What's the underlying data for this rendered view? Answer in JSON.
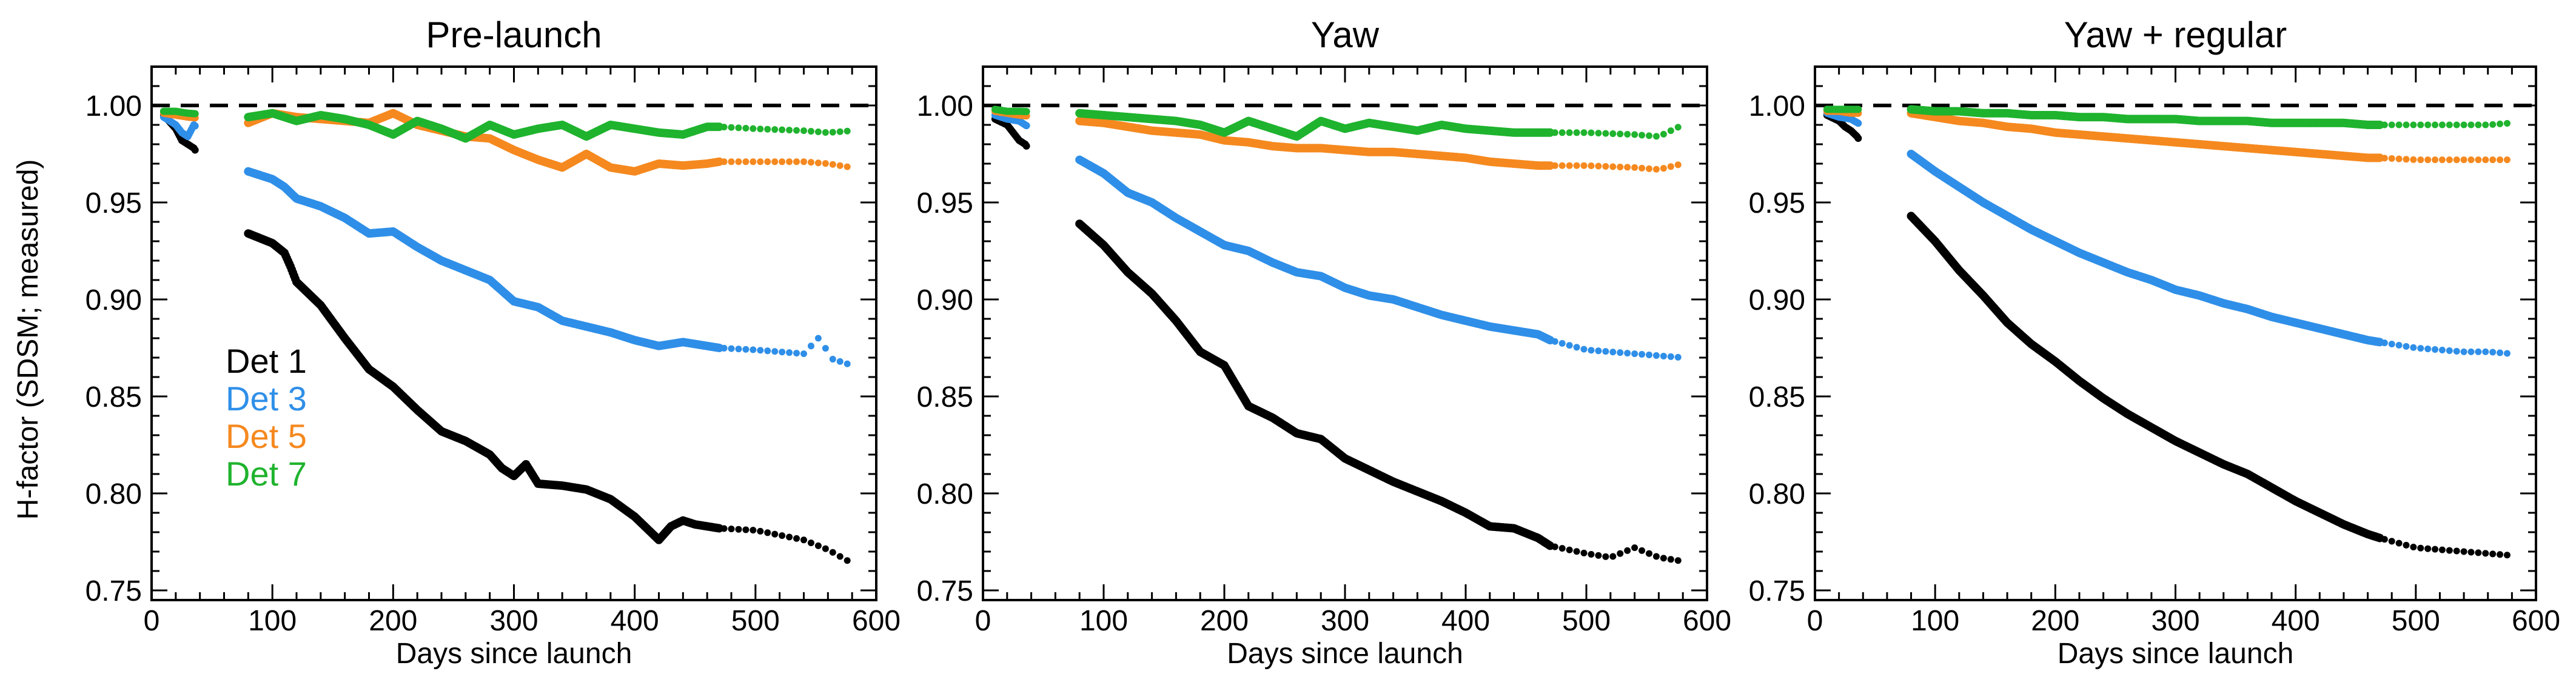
{
  "figure": {
    "ylabel": "H-factor (SDSM; measured)"
  },
  "chart_data": [
    {
      "type": "scatter",
      "title": "Pre-launch",
      "xlabel": "Days since launch",
      "ylabel": "H-factor (SDSM; measured)",
      "xlim": [
        0,
        600
      ],
      "ylim": [
        0.745,
        1.02
      ],
      "xticks": [
        0,
        100,
        200,
        300,
        400,
        500,
        600
      ],
      "yticks": [
        0.75,
        0.8,
        0.85,
        0.9,
        0.95,
        1.0
      ],
      "reference_line": 1.0,
      "legend": {
        "placement": "left-middle",
        "entries": [
          "Det 1",
          "Det 3",
          "Det 5",
          "Det 7"
        ]
      },
      "series": [
        {
          "name": "Det 1",
          "color": "#000000",
          "x": [
            10,
            20,
            25,
            30,
            35,
            80,
            100,
            110,
            115,
            120,
            140,
            160,
            180,
            200,
            220,
            240,
            260,
            280,
            290,
            300,
            310,
            320,
            340,
            360,
            380,
            400,
            410,
            420,
            430,
            440,
            450,
            460,
            470,
            500,
            540,
            560,
            580
          ],
          "y": [
            0.995,
            0.988,
            0.982,
            0.98,
            0.978,
            0.934,
            0.929,
            0.924,
            0.917,
            0.909,
            0.897,
            0.88,
            0.864,
            0.855,
            0.843,
            0.832,
            0.827,
            0.82,
            0.813,
            0.809,
            0.815,
            0.805,
            0.804,
            0.802,
            0.797,
            0.788,
            0.782,
            0.776,
            0.783,
            0.786,
            0.784,
            0.783,
            0.782,
            0.781,
            0.776,
            0.771,
            0.764
          ]
        },
        {
          "name": "Det 3",
          "color": "#2f8fe8",
          "x": [
            10,
            20,
            25,
            30,
            35,
            80,
            100,
            110,
            115,
            120,
            140,
            160,
            180,
            200,
            220,
            240,
            260,
            280,
            300,
            320,
            340,
            360,
            380,
            400,
            420,
            440,
            460,
            470,
            500,
            540,
            555,
            560,
            580
          ],
          "y": [
            0.994,
            0.99,
            0.986,
            0.984,
            0.99,
            0.966,
            0.962,
            0.958,
            0.955,
            0.952,
            0.948,
            0.942,
            0.934,
            0.935,
            0.927,
            0.92,
            0.915,
            0.91,
            0.899,
            0.896,
            0.889,
            0.886,
            0.883,
            0.879,
            0.876,
            0.878,
            0.876,
            0.875,
            0.874,
            0.872,
            0.882,
            0.87,
            0.866
          ]
        },
        {
          "name": "Det 5",
          "color": "#f5891f",
          "x": [
            10,
            20,
            30,
            80,
            100,
            120,
            140,
            160,
            180,
            200,
            220,
            240,
            260,
            280,
            300,
            320,
            340,
            360,
            380,
            400,
            420,
            440,
            460,
            470,
            500,
            540,
            560,
            580
          ],
          "y": [
            0.996,
            0.995,
            0.994,
            0.991,
            0.996,
            0.994,
            0.993,
            0.992,
            0.991,
            0.996,
            0.99,
            0.987,
            0.984,
            0.983,
            0.977,
            0.972,
            0.968,
            0.975,
            0.968,
            0.966,
            0.97,
            0.969,
            0.97,
            0.971,
            0.971,
            0.971,
            0.97,
            0.968
          ]
        },
        {
          "name": "Det 7",
          "color": "#1fb32e",
          "x": [
            10,
            20,
            30,
            80,
            100,
            120,
            140,
            160,
            180,
            200,
            220,
            240,
            260,
            280,
            300,
            320,
            340,
            360,
            380,
            400,
            420,
            440,
            460,
            470,
            500,
            540,
            560,
            580
          ],
          "y": [
            0.997,
            0.997,
            0.996,
            0.994,
            0.996,
            0.992,
            0.995,
            0.993,
            0.99,
            0.985,
            0.992,
            0.988,
            0.983,
            0.99,
            0.985,
            0.988,
            0.99,
            0.984,
            0.99,
            0.988,
            0.986,
            0.985,
            0.989,
            0.989,
            0.988,
            0.987,
            0.986,
            0.987
          ]
        }
      ]
    },
    {
      "type": "scatter",
      "title": "Yaw",
      "xlabel": "Days since launch",
      "ylabel": "",
      "xlim": [
        0,
        600
      ],
      "ylim": [
        0.745,
        1.02
      ],
      "xticks": [
        0,
        100,
        200,
        300,
        400,
        500,
        600
      ],
      "yticks": [
        0.75,
        0.8,
        0.85,
        0.9,
        0.95,
        1.0
      ],
      "reference_line": 1.0,
      "series": [
        {
          "name": "Det 1",
          "color": "#000000",
          "x": [
            10,
            20,
            25,
            30,
            35,
            80,
            100,
            120,
            140,
            160,
            180,
            200,
            220,
            240,
            260,
            280,
            300,
            320,
            340,
            360,
            380,
            400,
            420,
            440,
            460,
            470,
            500,
            520,
            540,
            560,
            580
          ],
          "y": [
            0.993,
            0.99,
            0.986,
            0.982,
            0.98,
            0.939,
            0.928,
            0.914,
            0.903,
            0.889,
            0.873,
            0.866,
            0.845,
            0.839,
            0.831,
            0.828,
            0.818,
            0.812,
            0.806,
            0.801,
            0.796,
            0.79,
            0.783,
            0.782,
            0.777,
            0.773,
            0.769,
            0.767,
            0.772,
            0.767,
            0.765
          ]
        },
        {
          "name": "Det 3",
          "color": "#2f8fe8",
          "x": [
            10,
            20,
            30,
            80,
            100,
            120,
            140,
            160,
            180,
            200,
            220,
            240,
            260,
            280,
            300,
            320,
            340,
            360,
            380,
            400,
            420,
            440,
            460,
            470,
            500,
            540,
            560,
            580
          ],
          "y": [
            0.995,
            0.993,
            0.992,
            0.972,
            0.965,
            0.955,
            0.95,
            0.942,
            0.935,
            0.928,
            0.925,
            0.919,
            0.914,
            0.912,
            0.906,
            0.902,
            0.9,
            0.896,
            0.892,
            0.889,
            0.886,
            0.884,
            0.882,
            0.879,
            0.874,
            0.872,
            0.871,
            0.87
          ]
        },
        {
          "name": "Det 5",
          "color": "#f5891f",
          "x": [
            10,
            20,
            30,
            80,
            100,
            120,
            140,
            160,
            180,
            200,
            220,
            240,
            260,
            280,
            300,
            320,
            340,
            360,
            380,
            400,
            420,
            440,
            460,
            470,
            500,
            540,
            560,
            580
          ],
          "y": [
            0.997,
            0.996,
            0.995,
            0.992,
            0.991,
            0.989,
            0.987,
            0.986,
            0.985,
            0.982,
            0.981,
            0.979,
            0.978,
            0.978,
            0.977,
            0.976,
            0.976,
            0.975,
            0.974,
            0.973,
            0.971,
            0.97,
            0.969,
            0.969,
            0.969,
            0.968,
            0.967,
            0.97
          ]
        },
        {
          "name": "Det 7",
          "color": "#1fb32e",
          "x": [
            10,
            20,
            30,
            80,
            100,
            120,
            140,
            160,
            180,
            200,
            220,
            240,
            260,
            280,
            300,
            320,
            340,
            360,
            380,
            400,
            420,
            440,
            460,
            470,
            500,
            540,
            560,
            580
          ],
          "y": [
            0.998,
            0.997,
            0.997,
            0.996,
            0.995,
            0.994,
            0.993,
            0.992,
            0.99,
            0.986,
            0.992,
            0.988,
            0.984,
            0.992,
            0.988,
            0.991,
            0.989,
            0.987,
            0.99,
            0.988,
            0.987,
            0.986,
            0.986,
            0.986,
            0.986,
            0.985,
            0.984,
            0.99
          ]
        }
      ]
    },
    {
      "type": "scatter",
      "title": "Yaw + regular",
      "xlabel": "Days since launch",
      "ylabel": "",
      "xlim": [
        0,
        600
      ],
      "ylim": [
        0.745,
        1.02
      ],
      "xticks": [
        0,
        100,
        200,
        300,
        400,
        500,
        600
      ],
      "yticks": [
        0.75,
        0.8,
        0.85,
        0.9,
        0.95,
        1.0
      ],
      "reference_line": 1.0,
      "series": [
        {
          "name": "Det 1",
          "color": "#000000",
          "x": [
            10,
            20,
            25,
            30,
            35,
            80,
            100,
            120,
            140,
            160,
            180,
            200,
            220,
            240,
            260,
            280,
            300,
            320,
            340,
            360,
            380,
            400,
            420,
            440,
            460,
            470,
            500,
            540,
            560,
            580
          ],
          "y": [
            0.995,
            0.992,
            0.989,
            0.987,
            0.984,
            0.943,
            0.93,
            0.915,
            0.902,
            0.888,
            0.877,
            0.868,
            0.858,
            0.849,
            0.841,
            0.834,
            0.827,
            0.821,
            0.815,
            0.81,
            0.803,
            0.796,
            0.79,
            0.784,
            0.779,
            0.777,
            0.772,
            0.77,
            0.769,
            0.768
          ]
        },
        {
          "name": "Det 3",
          "color": "#2f8fe8",
          "x": [
            10,
            20,
            30,
            80,
            100,
            120,
            140,
            160,
            180,
            200,
            220,
            240,
            260,
            280,
            300,
            320,
            340,
            360,
            380,
            400,
            420,
            440,
            460,
            470,
            500,
            540,
            560,
            580
          ],
          "y": [
            0.996,
            0.994,
            0.993,
            0.975,
            0.966,
            0.958,
            0.95,
            0.943,
            0.936,
            0.93,
            0.924,
            0.919,
            0.914,
            0.91,
            0.905,
            0.902,
            0.898,
            0.895,
            0.891,
            0.888,
            0.885,
            0.882,
            0.879,
            0.878,
            0.875,
            0.873,
            0.873,
            0.872
          ]
        },
        {
          "name": "Det 5",
          "color": "#f5891f",
          "x": [
            10,
            20,
            30,
            80,
            100,
            120,
            140,
            160,
            180,
            200,
            220,
            240,
            260,
            280,
            300,
            320,
            340,
            360,
            380,
            400,
            420,
            440,
            460,
            470,
            500,
            540,
            560,
            580
          ],
          "y": [
            0.997,
            0.997,
            0.996,
            0.996,
            0.994,
            0.992,
            0.991,
            0.989,
            0.988,
            0.986,
            0.985,
            0.984,
            0.983,
            0.982,
            0.981,
            0.98,
            0.979,
            0.978,
            0.977,
            0.976,
            0.975,
            0.974,
            0.973,
            0.973,
            0.972,
            0.972,
            0.972,
            0.972
          ]
        },
        {
          "name": "Det 7",
          "color": "#1fb32e",
          "x": [
            10,
            20,
            30,
            80,
            100,
            120,
            140,
            160,
            180,
            200,
            220,
            240,
            260,
            280,
            300,
            320,
            340,
            360,
            380,
            400,
            420,
            440,
            460,
            470,
            500,
            540,
            560,
            580
          ],
          "y": [
            0.998,
            0.998,
            0.998,
            0.998,
            0.997,
            0.997,
            0.996,
            0.996,
            0.995,
            0.995,
            0.994,
            0.994,
            0.993,
            0.993,
            0.993,
            0.992,
            0.992,
            0.992,
            0.991,
            0.991,
            0.991,
            0.991,
            0.99,
            0.99,
            0.99,
            0.99,
            0.99,
            0.991
          ]
        }
      ]
    }
  ]
}
